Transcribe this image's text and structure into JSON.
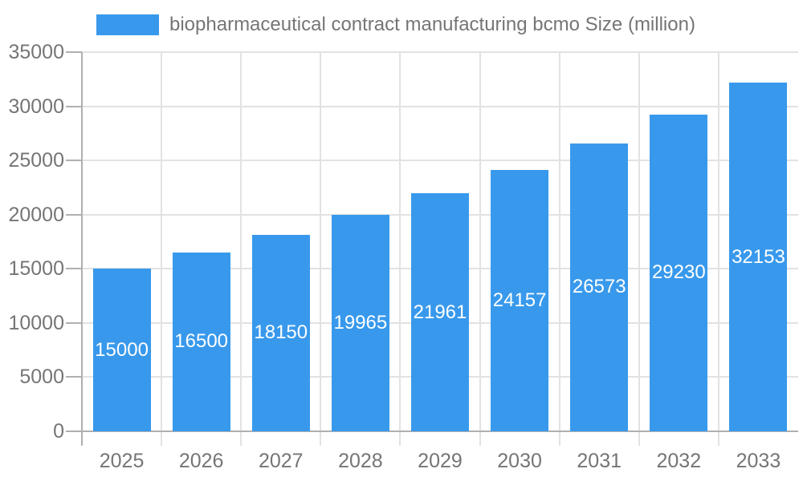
{
  "chart_data": {
    "type": "bar",
    "title": "biopharmaceutical contract manufacturing bcmo Size (million)",
    "legend_position": "top-left",
    "categories": [
      "2025",
      "2026",
      "2027",
      "2028",
      "2029",
      "2030",
      "2031",
      "2032",
      "2033"
    ],
    "values": [
      15000,
      16500,
      18150,
      19965,
      21961,
      24157,
      26573,
      29230,
      32153
    ],
    "bar_labels": [
      "15000",
      "16500",
      "18150",
      "19965",
      "21961",
      "24157",
      "26573",
      "29230",
      "32153"
    ],
    "xlabel": "",
    "ylabel": "",
    "ylim": [
      0,
      35000
    ],
    "yticks": [
      0,
      5000,
      10000,
      15000,
      20000,
      25000,
      30000,
      35000
    ],
    "ytick_labels": [
      "0",
      "5000",
      "10000",
      "15000",
      "20000",
      "25000",
      "30000",
      "35000"
    ],
    "grid": true,
    "bar_labels_inside_centered": true,
    "colors": {
      "bar": "#3899EC",
      "bar_label": "#ffffff",
      "axis_text": "#757575",
      "gridline": "#e2e2e2",
      "axis_line": "#b0b0b0"
    }
  }
}
